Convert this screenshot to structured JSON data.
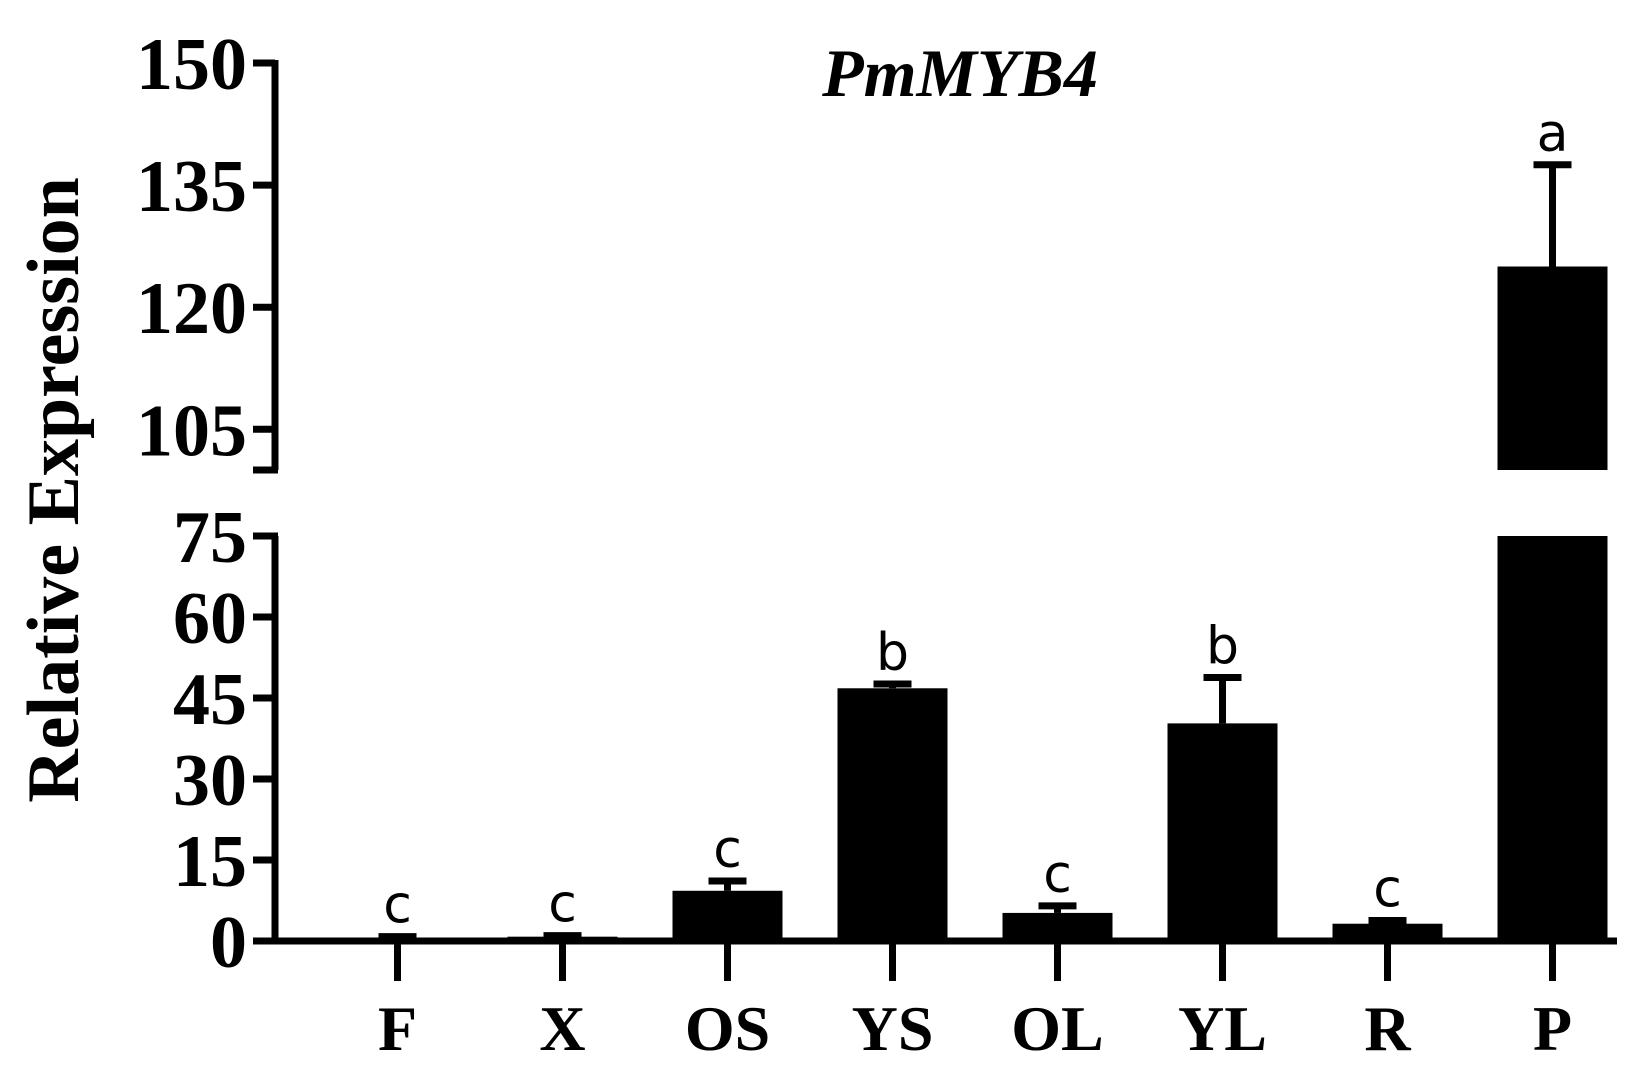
{
  "chart_data": {
    "type": "bar",
    "title": "PmMYB4",
    "xlabel": "",
    "ylabel": "Relative Expression",
    "categories": [
      "F",
      "X",
      "OS",
      "YS",
      "OL",
      "YL",
      "R",
      "P"
    ],
    "values": [
      0.6,
      0.8,
      9.3,
      46.8,
      5.2,
      40.3,
      3.2,
      125.0
    ],
    "errors": [
      0.2,
      0.2,
      1.8,
      0.8,
      1.3,
      8.5,
      0.6,
      12.5
    ],
    "significance": [
      "c",
      "c",
      "c",
      "b",
      "c",
      "b",
      "c",
      "a"
    ],
    "axis_break": {
      "lower_range": [
        0,
        75
      ],
      "upper_range": [
        100,
        150
      ]
    },
    "yticks_lower": [
      0,
      15,
      30,
      45,
      60,
      75
    ],
    "yticks_upper": [
      105,
      120,
      135,
      150
    ],
    "yticks_lower_labels": [
      "0",
      "15",
      "30",
      "45",
      "60",
      "75"
    ],
    "yticks_upper_labels": [
      "105",
      "120",
      "135",
      "150"
    ],
    "bar_color": "#000000",
    "grid": false,
    "legend": "none"
  }
}
